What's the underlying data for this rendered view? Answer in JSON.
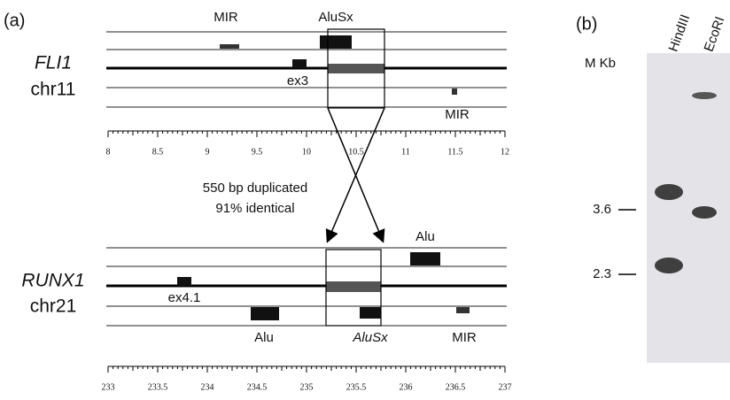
{
  "panel_a": {
    "label": "(a)",
    "top": {
      "gene": "FLI1",
      "chromosome": "chr11",
      "features": [
        "MIR",
        "AluSx",
        "ex3",
        "MIR"
      ],
      "axis_ticks": [
        "8",
        "8.5",
        "9",
        "9.5",
        "10",
        "10.5",
        "11",
        "11.5",
        "12"
      ]
    },
    "duplication": {
      "line1": "550 bp duplicated",
      "line2": "91% identical"
    },
    "bottom": {
      "gene": "RUNX1",
      "chromosome": "chr21",
      "features": [
        "Alu",
        "ex4.1",
        "Alu",
        "AluSx",
        "MIR"
      ],
      "axis_ticks": [
        "233",
        "233.5",
        "234",
        "234.5",
        "235",
        "235.5",
        "236",
        "236.5",
        "237"
      ]
    }
  },
  "panel_b": {
    "label": "(b)",
    "lanes": [
      "HindIII",
      "EcoRI"
    ],
    "size_header": "M Kb",
    "markers": [
      "3.6",
      "2.3"
    ]
  }
}
